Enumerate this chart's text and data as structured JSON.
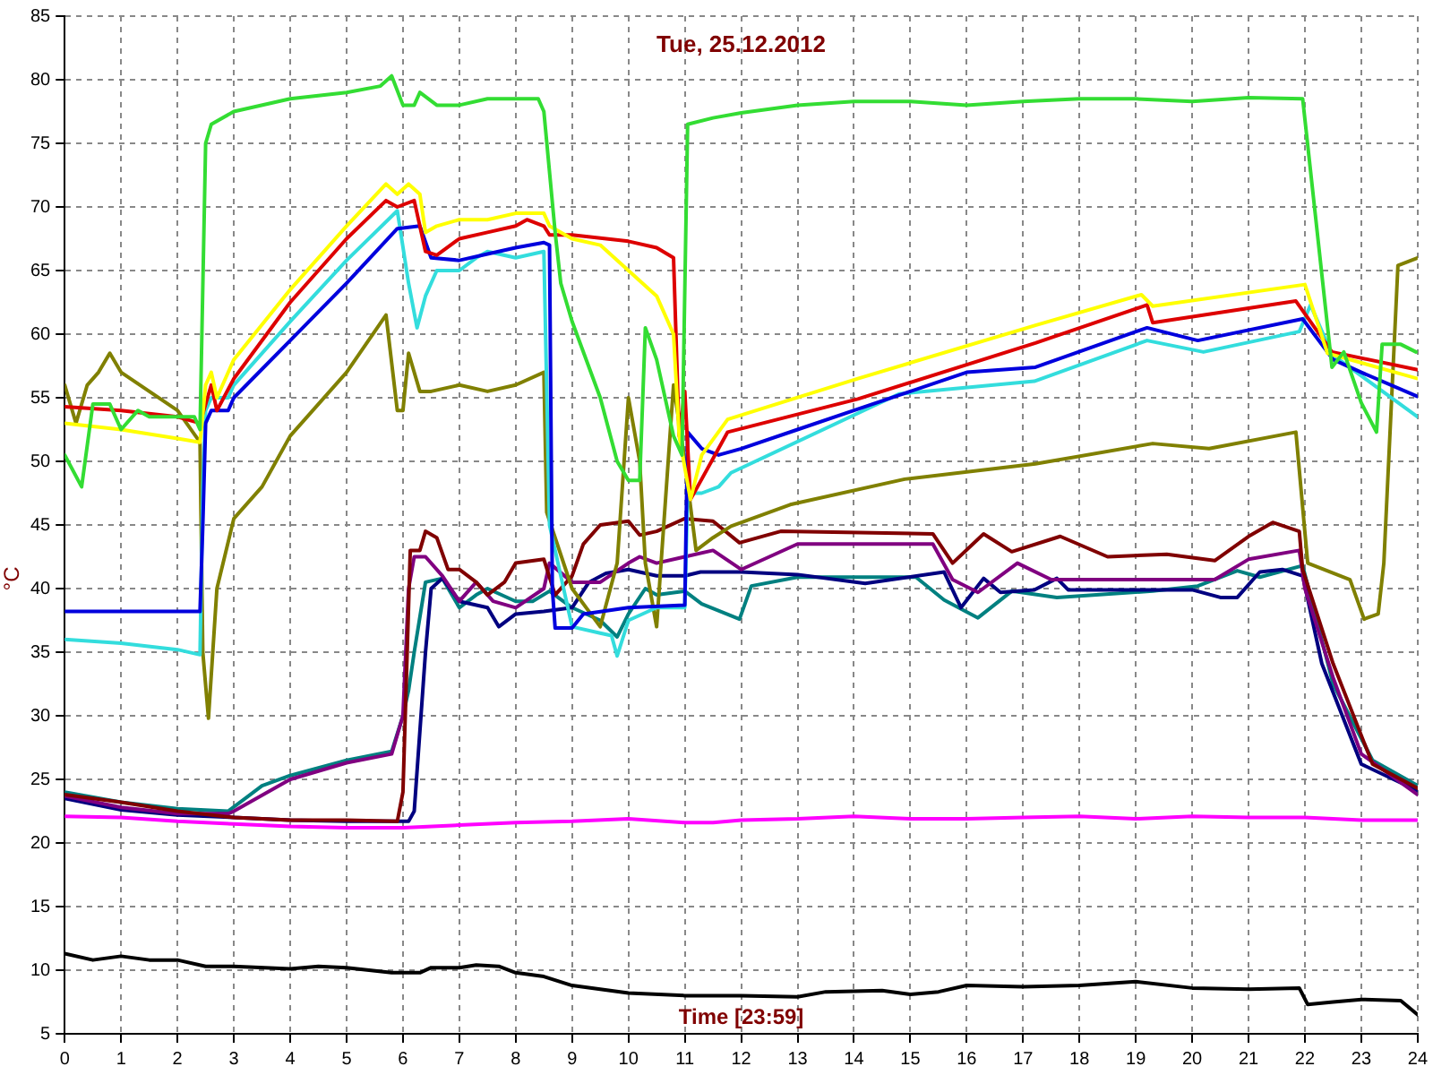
{
  "chart_data": {
    "type": "line",
    "title": "Tue, 25.12.2012",
    "xlabel": "Time [23:59]",
    "ylabel": "°C",
    "xlim": [
      0,
      24
    ],
    "xticks": [
      0,
      1,
      2,
      3,
      4,
      5,
      6,
      7,
      8,
      9,
      10,
      11,
      12,
      13,
      14,
      15,
      16,
      17,
      18,
      19,
      20,
      21,
      22,
      23,
      24
    ],
    "ylim": [
      5,
      85
    ],
    "yticks": [
      5,
      10,
      15,
      20,
      25,
      30,
      35,
      40,
      45,
      50,
      55,
      60,
      65,
      70,
      75,
      80,
      85
    ],
    "grid": true,
    "legend": false,
    "marker": "none",
    "line_style": "solid",
    "series": [
      {
        "color": "#33dd33",
        "x": [
          0,
          0.3,
          0.5,
          0.8,
          1,
          1.3,
          1.5,
          2,
          2.3,
          2.4,
          2.5,
          2.6,
          3,
          4,
          5,
          5.6,
          5.8,
          6,
          6.2,
          6.3,
          6.6,
          7,
          7.5,
          8,
          8.4,
          8.5,
          8.7,
          8.8,
          9,
          9.5,
          9.8,
          10,
          10.2,
          10.3,
          10.5,
          10.8,
          10.95,
          11.05,
          11.5,
          12,
          13,
          14,
          15,
          16,
          17,
          18,
          19,
          20,
          21,
          21.96,
          22.48,
          22.69,
          23,
          23.27,
          23.37,
          23.7,
          23.97
        ],
        "values": [
          50.5,
          48,
          54.5,
          54.5,
          52.5,
          54,
          53.5,
          53.5,
          53.5,
          52.5,
          75,
          76.5,
          77.5,
          78.5,
          79,
          79.5,
          80.3,
          78,
          78,
          79,
          78,
          78,
          78.5,
          78.5,
          78.5,
          77.5,
          68,
          64,
          61,
          55,
          50,
          48.5,
          48.5,
          60.5,
          58,
          52,
          50.5,
          76.5,
          77,
          77.4,
          78,
          78.3,
          78.3,
          78,
          78.3,
          78.5,
          78.5,
          78.3,
          78.6,
          78.5,
          57.4,
          58.6,
          54.6,
          52.3,
          59.2,
          59.2,
          58.6
        ]
      },
      {
        "color": "#ffff00",
        "x": [
          0,
          1,
          2,
          2.4,
          2.5,
          2.6,
          2.7,
          3,
          4,
          5,
          5.7,
          5.9,
          6.1,
          6.3,
          6.4,
          6.6,
          7,
          7.5,
          8,
          8.5,
          8.6,
          9,
          9.5,
          10,
          10.5,
          10.8,
          10.9,
          11.1,
          11.3,
          11.76,
          14.07,
          17.22,
          19.1,
          19.3,
          22,
          22.4,
          24
        ],
        "values": [
          53,
          52.5,
          51.8,
          51.5,
          56,
          57,
          55,
          58,
          63.5,
          68.5,
          71.8,
          71,
          71.8,
          71,
          68,
          68.5,
          69,
          69,
          69.5,
          69.5,
          68.5,
          67.5,
          67,
          65,
          63,
          60,
          52,
          47,
          50.5,
          53.3,
          56.5,
          60.7,
          63.1,
          62.2,
          63.9,
          58.5,
          56.5
        ]
      },
      {
        "color": "#dd0000",
        "x": [
          0,
          1,
          2,
          2.4,
          2.5,
          2.6,
          2.7,
          3,
          4,
          5,
          5.7,
          5.9,
          6.2,
          6.4,
          6.6,
          7,
          7.5,
          8,
          8.2,
          8.5,
          8.6,
          9,
          10,
          10.5,
          10.8,
          10.9,
          11,
          11.1,
          11.76,
          14.07,
          17.22,
          19.2,
          19.3,
          21.84,
          22.48,
          24
        ],
        "values": [
          54.3,
          54,
          53.5,
          53,
          54.5,
          56,
          54,
          56.5,
          62.5,
          67.5,
          70.5,
          70,
          70.5,
          66.5,
          66.2,
          67.5,
          68,
          68.5,
          69,
          68.5,
          67.8,
          67.8,
          67.3,
          66.8,
          66,
          52,
          55.5,
          47,
          52.3,
          54.9,
          59.3,
          62.3,
          60.9,
          62.6,
          58.6,
          57.2
        ]
      },
      {
        "color": "#0000dd",
        "x": [
          0,
          2.4,
          2.45,
          2.5,
          2.6,
          2.9,
          3,
          4,
          5,
          5.9,
          6.3,
          6.5,
          7,
          7.5,
          8,
          8.5,
          8.6,
          8.65,
          8.7,
          9,
          9.2,
          10,
          11,
          11.05,
          11.3,
          11.6,
          12,
          13,
          14,
          15,
          16,
          17.22,
          19.2,
          20.1,
          21.96,
          22.5,
          23,
          24
        ],
        "values": [
          38.2,
          38.2,
          45,
          53,
          54,
          54,
          55,
          59.5,
          64,
          68.3,
          68.5,
          66,
          65.8,
          66.3,
          66.8,
          67.2,
          67,
          40,
          36.9,
          36.9,
          38,
          38.5,
          38.7,
          52.3,
          51,
          50.5,
          51,
          52.5,
          54,
          55.5,
          57,
          57.4,
          60.5,
          59.5,
          61.2,
          58,
          57,
          55.1
        ]
      },
      {
        "color": "#33dddd",
        "x": [
          0,
          1,
          2,
          2.4,
          2.45,
          2.5,
          2.6,
          2.9,
          3,
          4,
          5,
          5.9,
          6.1,
          6.25,
          6.4,
          6.6,
          7,
          7.3,
          7.5,
          8,
          8.5,
          8.6,
          9,
          9.5,
          9.7,
          9.8,
          10,
          10.5,
          11,
          11.05,
          11.3,
          11.6,
          11.82,
          14.8,
          17.2,
          19.2,
          20.2,
          21.9,
          22.1,
          22.48,
          24
        ],
        "values": [
          36,
          35.7,
          35.2,
          34.8,
          48,
          54,
          55,
          55,
          56,
          61,
          65.8,
          69.7,
          64,
          60.5,
          63,
          65,
          65,
          66,
          66.5,
          66,
          66.5,
          45,
          37,
          36.5,
          36.3,
          34.7,
          37.5,
          38.5,
          38.5,
          47.5,
          47.5,
          48,
          49.1,
          55.3,
          56.3,
          59.5,
          58.6,
          60.2,
          62.3,
          58.4,
          53.5
        ]
      },
      {
        "color": "#808000",
        "x": [
          0,
          0.2,
          0.4,
          0.6,
          0.8,
          1,
          1.5,
          2,
          2.4,
          2.45,
          2.55,
          2.7,
          3,
          3.5,
          4,
          5,
          5.7,
          5.9,
          6,
          6.1,
          6.3,
          6.5,
          7,
          7.5,
          8,
          8.5,
          8.55,
          9,
          9.5,
          9.8,
          10,
          10.2,
          10.3,
          10.5,
          10.8,
          11,
          11.2,
          11.5,
          11.82,
          12.87,
          14.9,
          17.22,
          19.3,
          20.3,
          21.84,
          22,
          22.05,
          22.8,
          23.05,
          23.3,
          23.4,
          23.65,
          24
        ],
        "values": [
          56,
          53,
          56,
          57,
          58.5,
          57,
          55.5,
          54,
          51.5,
          35,
          29.8,
          40,
          45.5,
          48,
          52,
          57,
          61.5,
          54,
          54,
          58.5,
          55.5,
          55.5,
          56,
          55.5,
          56,
          57,
          46,
          40,
          37,
          42,
          55,
          50,
          42,
          37,
          56,
          50,
          43,
          44,
          44.9,
          46.6,
          48.6,
          49.8,
          51.4,
          51,
          52.3,
          44.4,
          42,
          40.7,
          37.6,
          38,
          42,
          65.4,
          66
        ]
      },
      {
        "color": "#800000",
        "x": [
          0,
          1,
          2,
          3,
          4,
          5,
          5.9,
          6,
          6.13,
          6.3,
          6.4,
          6.6,
          6.8,
          7,
          7.3,
          7.5,
          7.8,
          8,
          8.5,
          8.7,
          9,
          9.2,
          9.5,
          10,
          10.2,
          10.5,
          11,
          11.5,
          11.97,
          12.7,
          15.4,
          15.75,
          16.3,
          16.8,
          17.66,
          18.5,
          19.55,
          20.4,
          21,
          21.43,
          21.9,
          21.96,
          22.5,
          23.2,
          24
        ],
        "values": [
          23.8,
          23.2,
          22.5,
          22,
          21.8,
          21.8,
          21.7,
          24,
          43,
          43,
          44.5,
          44,
          41.5,
          41.5,
          40.5,
          39.5,
          40.5,
          42,
          42.3,
          39.5,
          41,
          43.5,
          45,
          45.3,
          44.2,
          44.5,
          45.5,
          45.3,
          43.6,
          44.5,
          44.3,
          42,
          44.3,
          42.9,
          44.1,
          42.5,
          42.7,
          42.2,
          44.1,
          45.2,
          44.5,
          41.5,
          34.1,
          26.2,
          24.3
        ]
      },
      {
        "color": "#800080",
        "x": [
          0,
          1,
          2,
          2.9,
          3,
          4,
          5,
          5.8,
          6,
          6.1,
          6.2,
          6.4,
          6.7,
          7,
          7.3,
          7.6,
          8,
          8.5,
          8.6,
          9,
          9.5,
          10,
          10.2,
          10.5,
          11,
          11.5,
          12,
          13,
          15.4,
          15.75,
          16.2,
          16.9,
          17.5,
          19.3,
          20.4,
          21,
          21.9,
          22,
          22.5,
          23,
          24
        ],
        "values": [
          23.7,
          22.8,
          22.3,
          22.3,
          22.5,
          25,
          26.3,
          27,
          30,
          40,
          42.5,
          42.5,
          41,
          39,
          40.5,
          39,
          38.5,
          40,
          42,
          40.5,
          40.5,
          42,
          42.5,
          42,
          42.5,
          43,
          41.5,
          43.5,
          43.5,
          40.7,
          39.7,
          42,
          40.7,
          40.7,
          40.7,
          42.3,
          43,
          40,
          33,
          27,
          23.8
        ]
      },
      {
        "color": "#000080",
        "x": [
          0,
          1,
          2,
          3,
          4,
          5,
          6.1,
          6.2,
          6.4,
          6.5,
          6.7,
          7,
          7.5,
          7.7,
          8,
          8.5,
          9,
          9.3,
          9.6,
          10,
          10.5,
          11,
          11.28,
          12,
          13,
          14.2,
          15.6,
          15.9,
          16.3,
          16.6,
          17.2,
          17.6,
          17.8,
          19.3,
          20,
          20.5,
          20.8,
          21.2,
          21.6,
          21.96,
          22.3,
          23,
          24
        ],
        "values": [
          23.5,
          22.6,
          22.2,
          22,
          21.8,
          21.7,
          21.7,
          22.5,
          35,
          40,
          40.8,
          39,
          38.5,
          37,
          38,
          38.2,
          38.5,
          40.5,
          41.2,
          41.5,
          41,
          41,
          41.3,
          41.3,
          41.1,
          40.4,
          41.3,
          38.5,
          40.8,
          39.7,
          39.9,
          40.8,
          39.9,
          39.9,
          39.9,
          39.3,
          39.3,
          41.3,
          41.5,
          41,
          34.1,
          26.2,
          24.1
        ]
      },
      {
        "color": "#008080",
        "x": [
          0,
          1,
          2,
          2.9,
          3.2,
          3.5,
          4,
          5,
          5.8,
          6,
          6.1,
          6.2,
          6.4,
          6.7,
          7,
          7.3,
          7.5,
          8,
          8.3,
          8.6,
          9,
          9.5,
          9.8,
          10,
          10.3,
          10.5,
          11,
          11.3,
          11.97,
          12.18,
          13,
          15.1,
          15.6,
          16.2,
          16.8,
          17.6,
          19.3,
          20.1,
          20.8,
          21.2,
          21.96,
          22.5,
          23.2,
          24
        ],
        "values": [
          24,
          23.2,
          22.7,
          22.5,
          23.5,
          24.5,
          25.3,
          26.5,
          27.2,
          30,
          32,
          35,
          40.5,
          40.8,
          38.5,
          39.5,
          40,
          39,
          39,
          39.8,
          38.5,
          37.5,
          36.2,
          38,
          40,
          39.5,
          39.8,
          38.8,
          37.6,
          40.2,
          40.9,
          40.9,
          39.1,
          37.7,
          39.8,
          39.3,
          39.8,
          40.2,
          41.4,
          40.9,
          41.8,
          32.5,
          26.5,
          24.5
        ]
      },
      {
        "color": "#ff00ff",
        "x": [
          0,
          1,
          2,
          3,
          4,
          5,
          6,
          7,
          8,
          9,
          10,
          11,
          11.5,
          12,
          13,
          14,
          15,
          16,
          17,
          18,
          19,
          20,
          21,
          22,
          23,
          24
        ],
        "values": [
          22.1,
          22,
          21.7,
          21.5,
          21.3,
          21.2,
          21.2,
          21.4,
          21.6,
          21.7,
          21.9,
          21.6,
          21.6,
          21.8,
          21.9,
          22.1,
          21.9,
          21.9,
          22,
          22.1,
          21.9,
          22.1,
          22,
          22,
          21.8,
          21.8
        ]
      },
      {
        "color": "#000000",
        "x": [
          0,
          0.5,
          1,
          1.5,
          2,
          2.5,
          3,
          4,
          4.5,
          5,
          5.8,
          6.3,
          6.5,
          7,
          7.3,
          7.7,
          8,
          8.5,
          9,
          10,
          11,
          12,
          13,
          13.5,
          14.5,
          15,
          15.5,
          16,
          17,
          18,
          19,
          20,
          21,
          21.9,
          22.05,
          22.5,
          23,
          23.7,
          24
        ],
        "values": [
          11.3,
          10.8,
          11.1,
          10.8,
          10.8,
          10.3,
          10.3,
          10.1,
          10.3,
          10.2,
          9.8,
          9.8,
          10.2,
          10.2,
          10.4,
          10.3,
          9.8,
          9.5,
          8.8,
          8.2,
          8,
          8,
          7.9,
          8.3,
          8.4,
          8.1,
          8.3,
          8.8,
          8.7,
          8.8,
          9.1,
          8.6,
          8.5,
          8.6,
          7.3,
          7.5,
          7.7,
          7.6,
          6.5
        ]
      }
    ]
  }
}
